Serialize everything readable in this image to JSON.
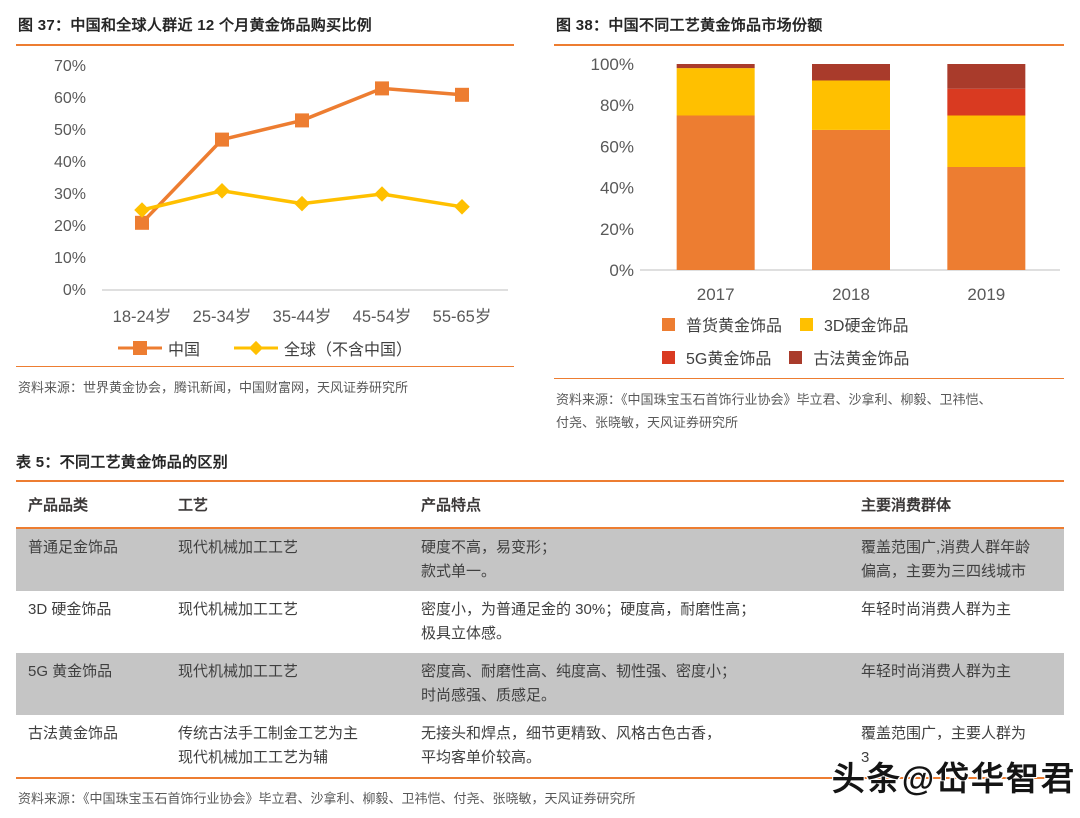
{
  "fig37": {
    "title": "图 37：中国和全球人群近 12 个月黄金饰品购买比例",
    "source": "资料来源：世界黄金协会，腾讯新闻，中国财富网，天风证券研究所"
  },
  "fig38": {
    "title": "图 38：中国不同工艺黄金饰品市场份额",
    "source_line1": "资料来源：《中国珠宝玉石首饰行业协会》毕立君、沙拿利、柳毅、卫祎恺、",
    "source_line2": "付尧、张晓敏，天风证券研究所"
  },
  "chart_data": [
    {
      "type": "line",
      "title": "中国和全球人群近 12 个月黄金饰品购买比例",
      "categories": [
        "18-24岁",
        "25-34岁",
        "35-44岁",
        "45-54岁",
        "55-65岁"
      ],
      "series": [
        {
          "name": "中国",
          "marker": "square",
          "color": "#ED7D31",
          "values": [
            21,
            47,
            53,
            63,
            61
          ]
        },
        {
          "name": "全球（不含中国）",
          "marker": "diamond",
          "color": "#FFC000",
          "values": [
            25,
            31,
            27,
            30,
            26
          ]
        }
      ],
      "ylim": [
        0,
        70
      ],
      "ytick_step": 10,
      "ytick_suffix": "%",
      "grid": false,
      "legend_position": "bottom"
    },
    {
      "type": "bar",
      "stacked": true,
      "title": "中国不同工艺黄金饰品市场份额",
      "categories": [
        "2017",
        "2018",
        "2019"
      ],
      "series": [
        {
          "name": "普货黄金饰品",
          "color": "#ED7D31",
          "values": [
            75,
            68,
            50
          ]
        },
        {
          "name": "3D硬金饰品",
          "color": "#FFC000",
          "values": [
            23,
            24,
            25
          ]
        },
        {
          "name": "5G黄金饰品",
          "color": "#D93A21",
          "values": [
            0,
            0,
            13
          ]
        },
        {
          "name": "古法黄金饰品",
          "color": "#A93B2B",
          "values": [
            2,
            8,
            12
          ]
        }
      ],
      "ylim": [
        0,
        100
      ],
      "ytick_step": 20,
      "ytick_suffix": "%",
      "grid": false,
      "legend_position": "bottom"
    }
  ],
  "table": {
    "title": "表 5：不同工艺黄金饰品的区别",
    "headers": [
      "产品品类",
      "工艺",
      "产品特点",
      "主要消费群体"
    ],
    "rows": [
      {
        "shaded": true,
        "category": [
          "普通足金饰品"
        ],
        "craft": [
          "现代机械加工工艺"
        ],
        "features": [
          "硬度不高，易变形；",
          "款式单一。"
        ],
        "consumers": [
          "覆盖范围广,消费人群年龄",
          "偏高，主要为三四线城市"
        ]
      },
      {
        "shaded": false,
        "category": [
          "3D 硬金饰品"
        ],
        "craft": [
          "现代机械加工工艺"
        ],
        "features": [
          "密度小，为普通足金的 30%；硬度高，耐磨性高；",
          "极具立体感。"
        ],
        "consumers": [
          "年轻时尚消费人群为主"
        ]
      },
      {
        "shaded": true,
        "category": [
          "5G 黄金饰品"
        ],
        "craft": [
          "现代机械加工工艺"
        ],
        "features": [
          "密度高、耐磨性高、纯度高、韧性强、密度小；",
          "时尚感强、质感足。"
        ],
        "consumers": [
          "年轻时尚消费人群为主"
        ]
      },
      {
        "shaded": false,
        "category": [
          "古法黄金饰品"
        ],
        "craft": [
          "传统古法手工制金工艺为主",
          "现代机械加工工艺为辅"
        ],
        "features": [
          "无接头和焊点，细节更精致、风格古色古香，",
          "平均客单价较高。"
        ],
        "consumers": [
          "覆盖范围广，主要人群为",
          "3"
        ]
      }
    ],
    "source": "资料来源：《中国珠宝玉石首饰行业协会》毕立君、沙拿利、柳毅、卫祎恺、付尧、张晓敏，天风证券研究所"
  },
  "watermark": "头条@岱华智君",
  "colors": {
    "accent_orange": "#ED7D31",
    "series_yellow": "#FFC000",
    "series_red": "#D93A21",
    "series_dark_red": "#A93B2B",
    "axis_text": "#595959",
    "row_shade": "#C5C5C5"
  }
}
